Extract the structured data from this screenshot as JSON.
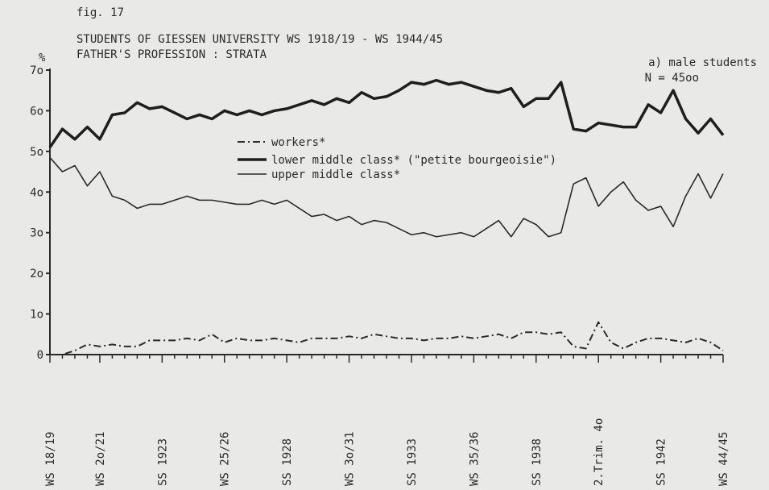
{
  "chart_data": {
    "type": "line",
    "figure_label": "fig. 17",
    "title": "STUDENTS OF GIESSEN UNIVERSITY WS 1918/19 - WS 1944/45",
    "subtitle": "FATHER'S PROFESSION : STRATA",
    "annotation": "a) male students",
    "annotation_n": "N = 45oo",
    "y_label": "%",
    "legend": "center",
    "categories": [
      "WS 18/19",
      null,
      null,
      null,
      "WS 2o/21",
      null,
      null,
      null,
      null,
      "SS 1923",
      null,
      null,
      null,
      null,
      "WS 25/26",
      null,
      null,
      null,
      null,
      "SS 1928",
      null,
      null,
      null,
      null,
      "WS 3o/31",
      null,
      null,
      null,
      null,
      "SS 1933",
      null,
      null,
      null,
      null,
      "WS 35/36",
      null,
      null,
      null,
      null,
      "SS 1938",
      null,
      null,
      null,
      null,
      "2.Trim. 4o",
      null,
      null,
      null,
      null,
      "SS 1942",
      null,
      null,
      null,
      null,
      "WS 44/45"
    ],
    "ylim": [
      0,
      70
    ],
    "yticks": [
      0,
      {
        "value": 10,
        "label": "1o"
      },
      {
        "value": 20,
        "label": "2o"
      },
      {
        "value": 30,
        "label": "3o"
      },
      {
        "value": 40,
        "label": "4o"
      },
      {
        "value": 50,
        "label": "5o"
      },
      {
        "value": 60,
        "label": "6o"
      },
      {
        "value": 70,
        "label": "7o"
      }
    ],
    "series": [
      {
        "name": "workers*",
        "color": "#2a2a2a",
        "style": "dashdot",
        "width": 2,
        "values": [
          0,
          0,
          1,
          2.5,
          2,
          2.5,
          2,
          2,
          3.5,
          3.5,
          3.5,
          4,
          3.5,
          5,
          3,
          4,
          3.5,
          3.5,
          4,
          3.5,
          3,
          4,
          4,
          4,
          4.5,
          4,
          5,
          4.5,
          4,
          4,
          3.5,
          4,
          4,
          4.5,
          4,
          4.5,
          5,
          4,
          5.5,
          5.5,
          5,
          5.5,
          2,
          1.5,
          8,
          3,
          1.5,
          3,
          4,
          4,
          3.5,
          3,
          4,
          3,
          1
        ]
      },
      {
        "name": "lower middle class* (\"petite bourgeoisie\")",
        "color": "#1e1e1e",
        "style": "solid",
        "width": 3.5,
        "values": [
          51,
          55.5,
          53,
          56,
          53,
          59,
          59.5,
          62,
          60.5,
          61,
          59.5,
          58,
          59,
          58,
          60,
          59,
          60,
          59,
          60,
          60.5,
          61.5,
          62.5,
          61.5,
          63,
          62,
          64.5,
          63,
          63.5,
          65,
          67,
          66.5,
          67.5,
          66.5,
          67,
          66,
          65,
          64.5,
          65.5,
          61,
          63,
          63,
          67,
          55.5,
          55,
          57,
          56.5,
          56,
          56,
          61.5,
          59.5,
          65,
          58,
          54.5,
          58,
          54
        ]
      },
      {
        "name": "upper middle class*",
        "color": "#2a2a2a",
        "style": "solid",
        "width": 1.6,
        "values": [
          48.5,
          45,
          46.5,
          41.5,
          45,
          39,
          38,
          36,
          37,
          37,
          38,
          39,
          38,
          38,
          37.5,
          37,
          37,
          38,
          37,
          38,
          36,
          34,
          34.5,
          33,
          34,
          32,
          33,
          32.5,
          31,
          29.5,
          30,
          29,
          29.5,
          30,
          29,
          31,
          33,
          29,
          33.5,
          32,
          29,
          30,
          42,
          43.5,
          36.5,
          40,
          42.5,
          38,
          35.5,
          36.5,
          31.5,
          39,
          44.5,
          38.5,
          44.5
        ]
      }
    ]
  }
}
